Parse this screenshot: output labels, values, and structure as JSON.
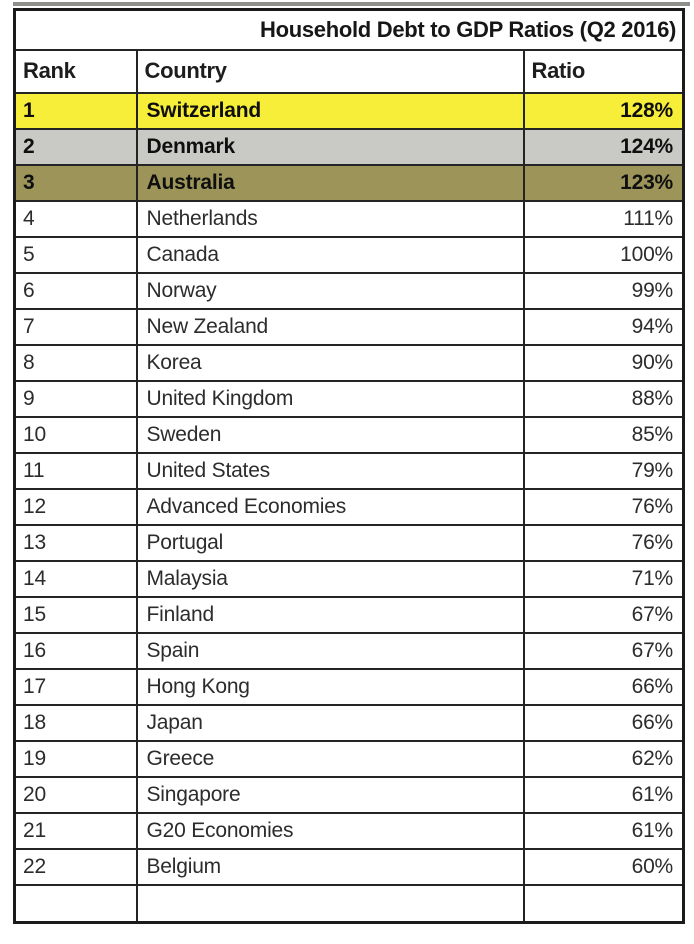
{
  "table": {
    "title": "Household Debt to GDP Ratios (Q2 2016)",
    "columns": [
      "Rank",
      "Country",
      "Ratio"
    ],
    "rows": [
      {
        "rank": "1",
        "country": "Switzerland",
        "ratio": "128%",
        "highlight": "yellow"
      },
      {
        "rank": "2",
        "country": "Denmark",
        "ratio": "124%",
        "highlight": "gray"
      },
      {
        "rank": "3",
        "country": "Australia",
        "ratio": "123%",
        "highlight": "olive"
      },
      {
        "rank": "4",
        "country": "Netherlands",
        "ratio": "111%",
        "highlight": ""
      },
      {
        "rank": "5",
        "country": "Canada",
        "ratio": "100%",
        "highlight": ""
      },
      {
        "rank": "6",
        "country": "Norway",
        "ratio": "99%",
        "highlight": ""
      },
      {
        "rank": "7",
        "country": "New Zealand",
        "ratio": "94%",
        "highlight": ""
      },
      {
        "rank": "8",
        "country": "Korea",
        "ratio": "90%",
        "highlight": ""
      },
      {
        "rank": "9",
        "country": "United Kingdom",
        "ratio": "88%",
        "highlight": ""
      },
      {
        "rank": "10",
        "country": "Sweden",
        "ratio": "85%",
        "highlight": ""
      },
      {
        "rank": "11",
        "country": "United States",
        "ratio": "79%",
        "highlight": ""
      },
      {
        "rank": "12",
        "country": "Advanced Economies",
        "ratio": "76%",
        "highlight": ""
      },
      {
        "rank": "13",
        "country": "Portugal",
        "ratio": "76%",
        "highlight": ""
      },
      {
        "rank": "14",
        "country": "Malaysia",
        "ratio": "71%",
        "highlight": ""
      },
      {
        "rank": "15",
        "country": "Finland",
        "ratio": "67%",
        "highlight": ""
      },
      {
        "rank": "16",
        "country": "Spain",
        "ratio": "67%",
        "highlight": ""
      },
      {
        "rank": "17",
        "country": "Hong Kong",
        "ratio": "66%",
        "highlight": ""
      },
      {
        "rank": "18",
        "country": "Japan",
        "ratio": "66%",
        "highlight": ""
      },
      {
        "rank": "19",
        "country": "Greece",
        "ratio": "62%",
        "highlight": ""
      },
      {
        "rank": "20",
        "country": "Singapore",
        "ratio": "61%",
        "highlight": ""
      },
      {
        "rank": "21",
        "country": "G20 Economies",
        "ratio": "61%",
        "highlight": ""
      },
      {
        "rank": "22",
        "country": "Belgium",
        "ratio": "60%",
        "highlight": ""
      }
    ],
    "highlight_colors": {
      "yellow": "#f7ee39",
      "gray": "#c9c9c6",
      "olive": "#9d9459"
    },
    "border_color": "#1b1b1b"
  },
  "chart_data": {
    "type": "table",
    "title": "Household Debt to GDP Ratios (Q2 2016)",
    "columns": [
      "Rank",
      "Country",
      "Ratio"
    ],
    "categories": [
      "Switzerland",
      "Denmark",
      "Australia",
      "Netherlands",
      "Canada",
      "Norway",
      "New Zealand",
      "Korea",
      "United Kingdom",
      "Sweden",
      "United States",
      "Advanced Economies",
      "Portugal",
      "Malaysia",
      "Finland",
      "Spain",
      "Hong Kong",
      "Japan",
      "Greece",
      "Singapore",
      "G20 Economies",
      "Belgium"
    ],
    "values": [
      128,
      124,
      123,
      111,
      100,
      99,
      94,
      90,
      88,
      85,
      79,
      76,
      76,
      71,
      67,
      67,
      66,
      66,
      62,
      61,
      61,
      60
    ],
    "value_unit": "% of GDP",
    "highlighted_rows": [
      {
        "country": "Switzerland",
        "color": "yellow"
      },
      {
        "country": "Denmark",
        "color": "gray"
      },
      {
        "country": "Australia",
        "color": "olive"
      }
    ]
  }
}
